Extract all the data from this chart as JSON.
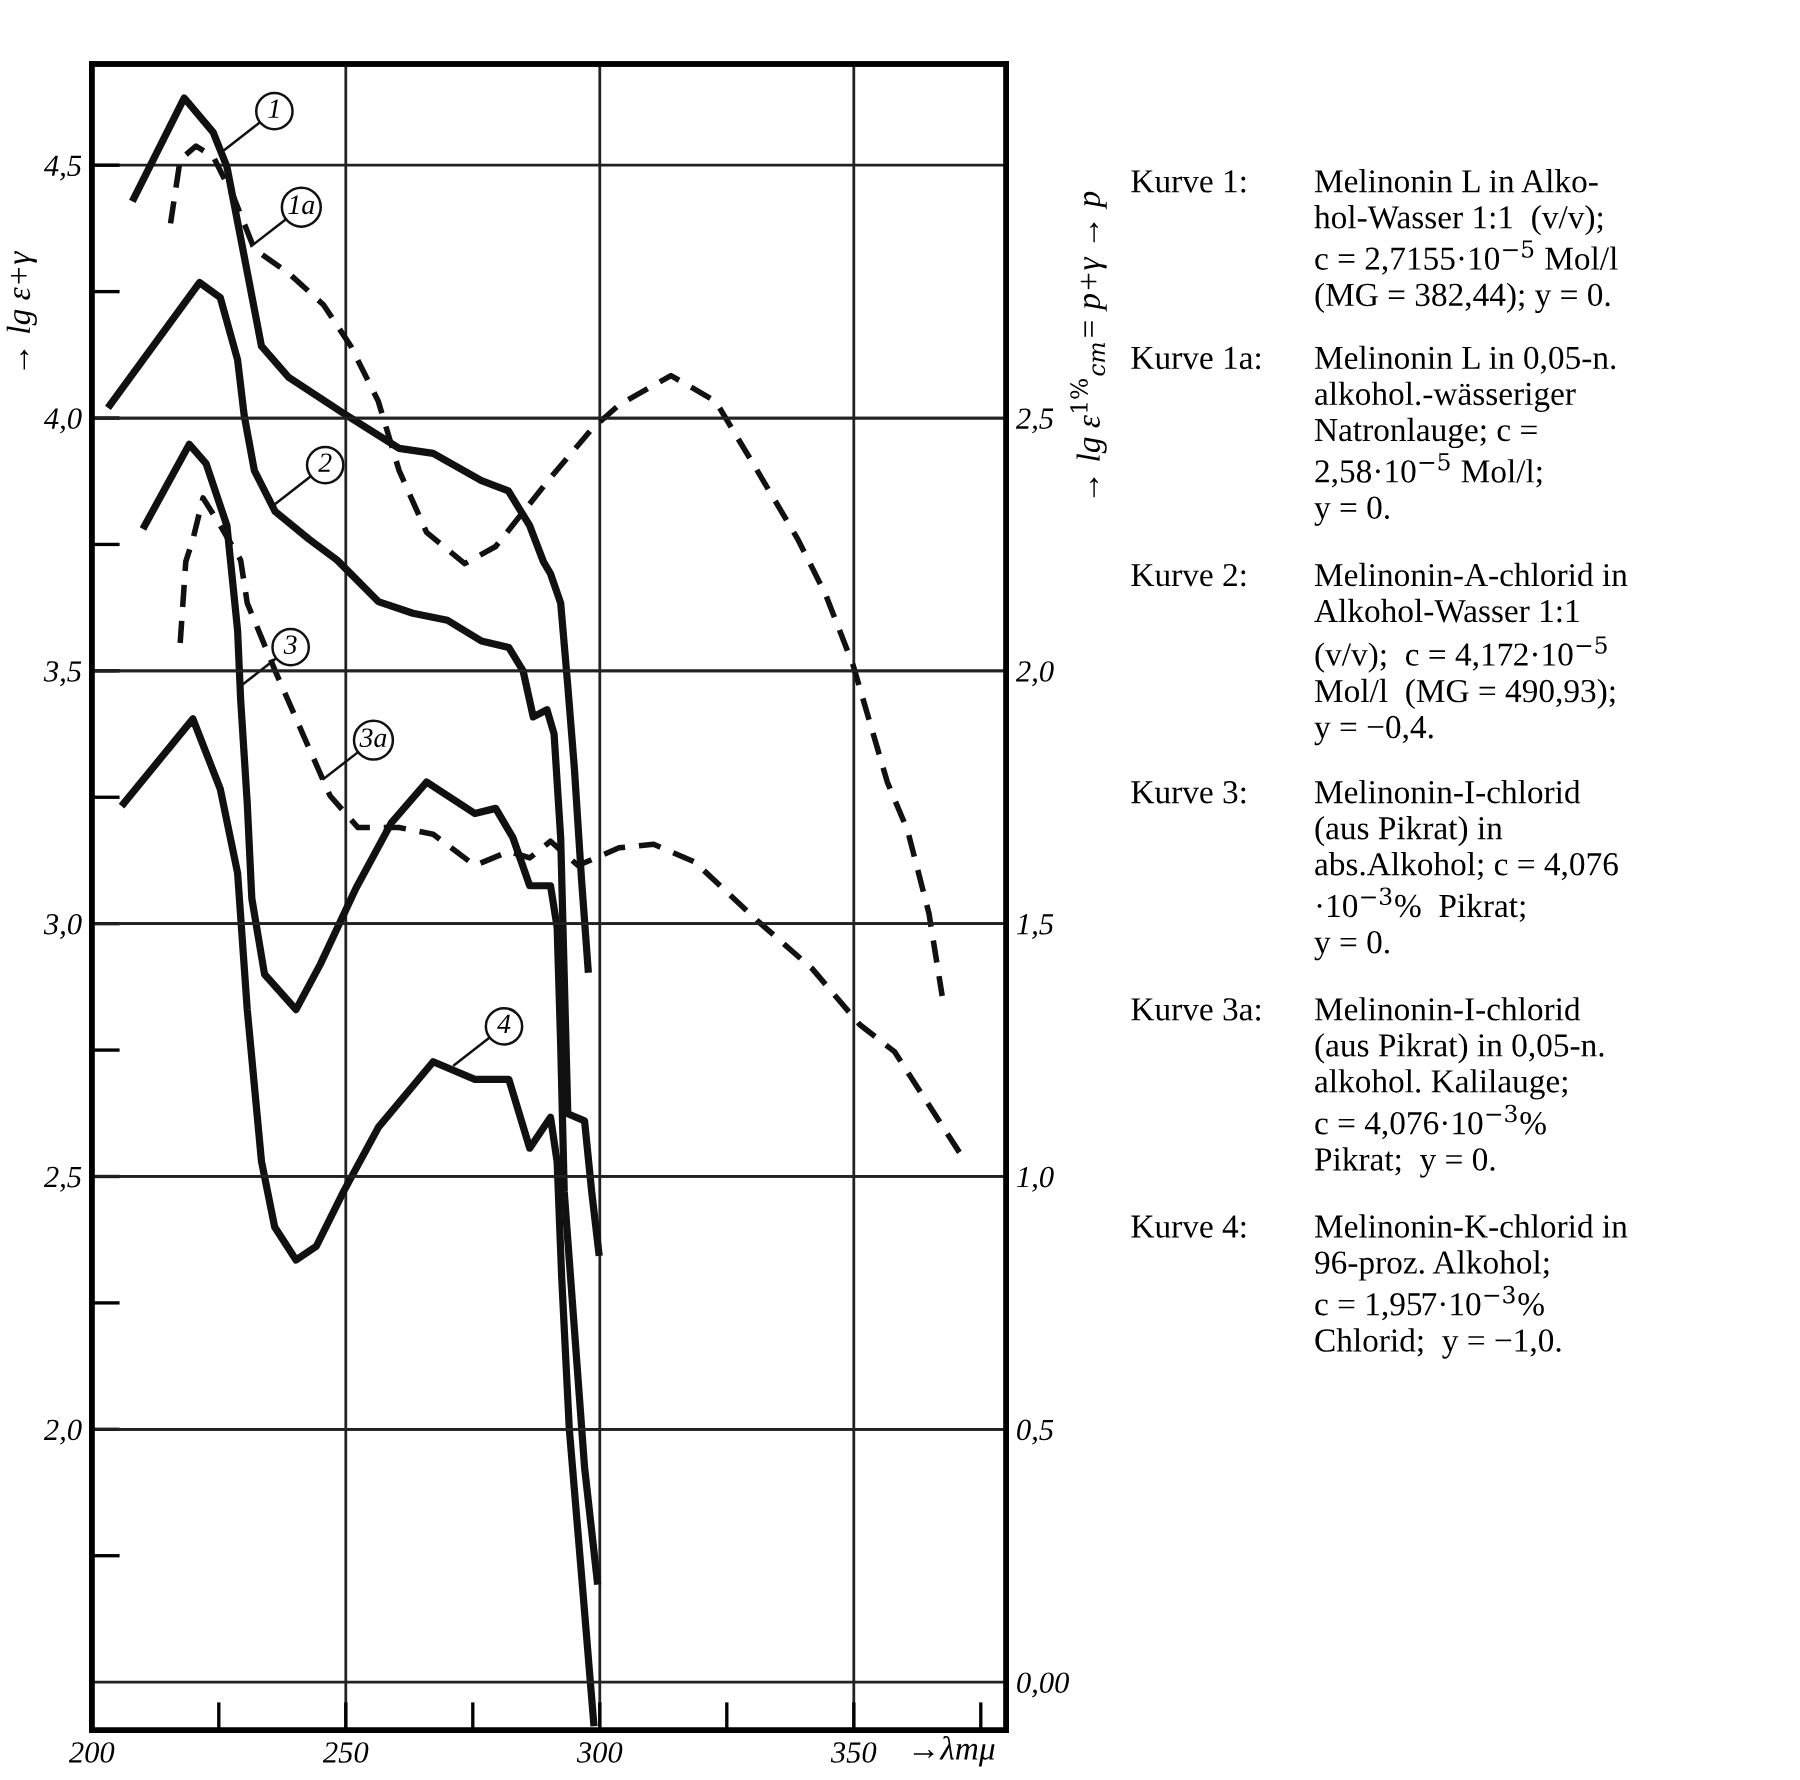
{
  "chart_data": {
    "type": "line",
    "xlabel": "→λmμ",
    "ylabel": "→ lg ε+γ",
    "y2label": "→ lg ε$^{1%}$$_{cm}$= p+γ → p",
    "xlim": [
      200,
      380
    ],
    "ylim": [
      1.405,
      4.7
    ],
    "y2lim": [
      -0.095,
      3.2
    ],
    "xticks": [
      200,
      {
        "value": 225,
        "label": null
      },
      250,
      {
        "value": 275,
        "label": null
      },
      300,
      {
        "value": 325,
        "label": null
      },
      350,
      {
        "value": 375,
        "label": null
      }
    ],
    "yticks": [
      {
        "value": 1.75,
        "label": null
      },
      {
        "value": 2.0,
        "label": "2,0"
      },
      {
        "value": 2.25,
        "label": null
      },
      {
        "value": 2.5,
        "label": "2,5"
      },
      {
        "value": 2.75,
        "label": null
      },
      {
        "value": 3.0,
        "label": "3,0"
      },
      {
        "value": 3.25,
        "label": null
      },
      {
        "value": 3.5,
        "label": "3,5"
      },
      {
        "value": 3.75,
        "label": null
      },
      {
        "value": 4.0,
        "label": "4,0"
      },
      {
        "value": 4.25,
        "label": null
      },
      {
        "value": 4.5,
        "label": "4,5"
      }
    ],
    "y2ticks": [
      {
        "value": 0.0,
        "label": "0,00"
      },
      {
        "value": 0.5,
        "label": "0,5"
      },
      {
        "value": 1.0,
        "label": "1,0"
      },
      {
        "value": 1.5,
        "label": "1,5"
      },
      {
        "value": 2.0,
        "label": "2,0"
      },
      {
        "value": 2.5,
        "label": "2,5"
      }
    ],
    "grid": true,
    "legend": false,
    "marker": "none",
    "series": [
      {
        "color": "#111111",
        "line_style": "solid",
        "x": [
          208.3,
          218.2,
          223.9,
          226.6,
          230,
          233.4,
          238.8,
          249.6,
          260.5,
          267.2,
          276.7,
          282,
          286.2,
          288.9,
          290.3,
          292.3,
          293.7,
          295,
          296.4,
          297.7
        ],
        "values": [
          4.435,
          4.633,
          4.565,
          4.497,
          4.32,
          4.142,
          4.08,
          4.009,
          3.94,
          3.93,
          3.876,
          3.856,
          3.787,
          3.716,
          3.692,
          3.634,
          3.47,
          3.307,
          3.088,
          2.91
        ]
      },
      {
        "color": "#111111",
        "line_style": "dashed",
        "x": [
          215.5,
          217.4,
          220.5,
          223.9,
          228,
          232,
          238.8,
          245.6,
          251,
          256.4,
          260.5,
          265.9,
          273.4,
          279.5,
          290.3,
          298.4,
          303.8,
          314,
          322.8,
          331,
          339,
          344.5,
          349.9,
          356.6,
          360.6,
          364.8,
          367.4
        ],
        "values": [
          4.385,
          4.511,
          4.538,
          4.517,
          4.435,
          4.334,
          4.286,
          4.224,
          4.142,
          4.033,
          3.896,
          3.774,
          3.712,
          3.746,
          3.882,
          3.978,
          4.026,
          4.084,
          4.033,
          3.896,
          3.76,
          3.65,
          3.51,
          3.28,
          3.184,
          3.02,
          2.857
        ]
      },
      {
        "color": "#111111",
        "line_style": "solid",
        "x": [
          203.6,
          209,
          221.2,
          225.3,
          228.7,
          230,
          232,
          236.1,
          242.8,
          248.3,
          256.4,
          263.2,
          270,
          276.7,
          282.1,
          284.9,
          286.9,
          289.6,
          291,
          292.3,
          293,
          293.7,
          297,
          298.4,
          299.8
        ],
        "values": [
          4.026,
          4.1,
          4.268,
          4.238,
          4.115,
          4.005,
          3.896,
          3.815,
          3.76,
          3.719,
          3.637,
          3.614,
          3.6,
          3.559,
          3.546,
          3.5,
          3.409,
          3.423,
          3.375,
          3.17,
          2.897,
          2.624,
          2.61,
          2.47,
          2.35
        ]
      },
      {
        "color": "#111111",
        "line_style": "solid",
        "x": [
          210.4,
          219.2,
          222.5,
          226.6,
          228.7,
          229.3,
          230.6,
          231.5,
          234,
          240.2,
          245,
          252,
          259,
          265.9,
          275.4,
          279.5,
          282.9,
          286.2,
          290.3,
          291.6,
          292.3,
          293,
          295,
          297,
          299.5
        ],
        "values": [
          3.787,
          3.948,
          3.91,
          3.787,
          3.58,
          3.443,
          3.238,
          3.05,
          2.9,
          2.83,
          2.92,
          3.07,
          3.2,
          3.28,
          3.218,
          3.228,
          3.17,
          3.075,
          3.075,
          2.993,
          2.76,
          2.47,
          2.198,
          1.925,
          1.7
        ]
      },
      {
        "color": "#111111",
        "line_style": "dashed",
        "x": [
          217.4,
          218.5,
          219.9,
          221.9,
          225.3,
          229.3,
          230.6,
          236.1,
          241.5,
          246.9,
          252.4,
          260.5,
          267.2,
          275.4,
          282.1,
          286.2,
          290.3,
          295.7,
          303.8,
          310.6,
          318.7,
          331,
          341.8,
          351.2,
          358,
          370.9
        ],
        "values": [
          3.555,
          3.716,
          3.76,
          3.842,
          3.787,
          3.719,
          3.634,
          3.5,
          3.376,
          3.253,
          3.19,
          3.19,
          3.177,
          3.115,
          3.143,
          3.13,
          3.163,
          3.115,
          3.15,
          3.157,
          3.122,
          3.006,
          2.911,
          2.8,
          2.747,
          2.546
        ]
      },
      {
        "color": "#111111",
        "line_style": "solid",
        "x": [
          206.3,
          219.9,
          225.3,
          228.7,
          230.6,
          233.4,
          236,
          240.2,
          244.2,
          249.6,
          256.4,
          267.2,
          275.4,
          282.1,
          286.2,
          290.3,
          291.6,
          292.5,
          294,
          296.5,
          298.8
        ],
        "values": [
          3.238,
          3.405,
          3.266,
          3.1,
          2.83,
          2.53,
          2.4,
          2.335,
          2.362,
          2.471,
          2.597,
          2.727,
          2.692,
          2.692,
          2.556,
          2.617,
          2.529,
          2.3,
          2.0,
          1.7,
          1.42
        ]
      }
    ],
    "annotations": [
      {
        "text": "1",
        "x": 226.1,
        "y": 4.53
      },
      {
        "text": "1a",
        "x": 231.4,
        "y": 4.34
      },
      {
        "text": "2",
        "x": 236.1,
        "y": 3.83
      },
      {
        "text": "3",
        "x": 229.3,
        "y": 3.47
      },
      {
        "text": "3a",
        "x": 245.6,
        "y": 3.286
      },
      {
        "text": "4",
        "x": 271.3,
        "y": 2.72
      },
      "Kurve 1:",
      "Melinonin L in Alko-\nhol-Wasser 1:1  (v/v);\nc = 2,7155·10$^{−5}$ Mol/l\n(MG = 382,44); y = 0.",
      "Kurve 1a:",
      "Melinonin L in 0,05-n.\nalkohol.-wässeriger\nNatronlauge; c =\n2,58·10$^{−5}$ Mol/l;\ny = 0.",
      "Kurve 2:",
      "Melinonin-A-chlorid in\nAlkohol-Wasser 1:1\n(v/v);  c = 4,172·10$^{−5}$\nMol/l  (MG = 490,93);\ny = −0,4.",
      "Kurve 3:",
      "Melinonin-I-chlorid\n(aus Pikrat) in\nabs.Alkohol; c = 4,076\n·10$^{−3}$%  Pikrat;\ny = 0.",
      "Kurve 3a:",
      "Melinonin-I-chlorid\n(aus Pikrat) in 0,05-n.\nalkohol. Kalilauge;\nc = 4,076·10$^{−3}$%\nPikrat;  y = 0.",
      "Kurve 4:",
      "Melinonin-K-chlorid in\n96-proz. Alkohol;\nc = 1,957·10$^{−3}$%\nChlorid;  y = −1,0."
    ]
  }
}
